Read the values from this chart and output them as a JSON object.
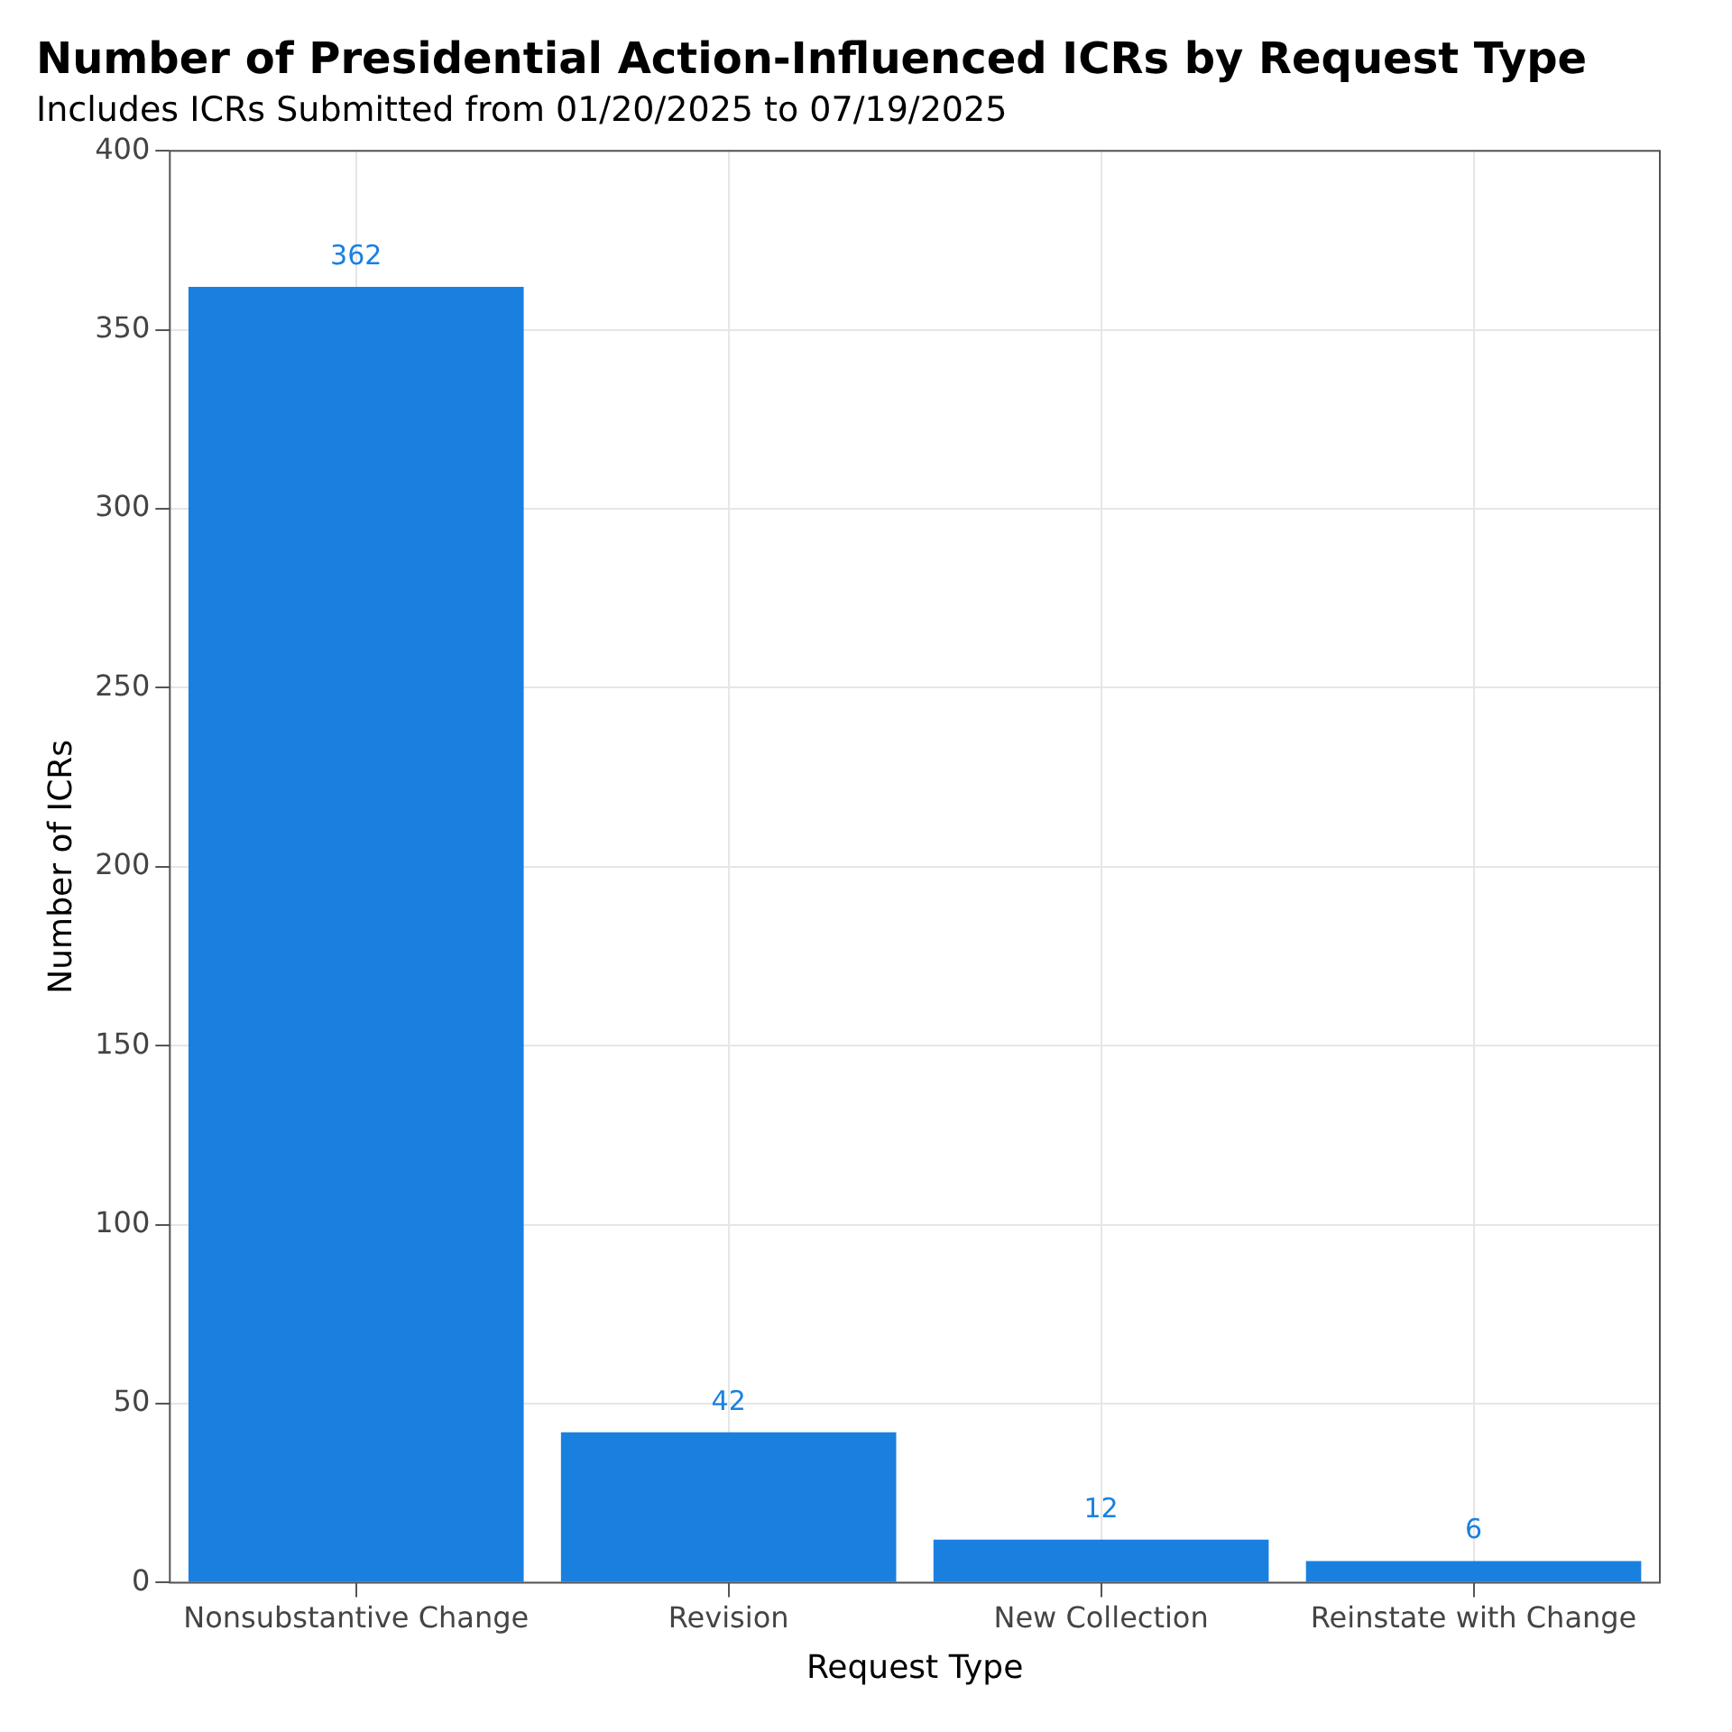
{
  "chart_data": {
    "type": "bar",
    "title": "Number of Presidential Action-Influenced ICRs by Request Type",
    "subtitle": "Includes ICRs Submitted from 01/20/2025 to 07/19/2025",
    "xlabel": "Request Type",
    "ylabel": "Number of ICRs",
    "categories": [
      "Nonsubstantive Change",
      "Revision",
      "New Collection",
      "Reinstate with Change"
    ],
    "values": [
      362,
      42,
      12,
      6
    ],
    "color": "#1a80e0",
    "ylim": [
      0,
      400
    ],
    "yticks": [
      0,
      50,
      100,
      150,
      200,
      250,
      300,
      350,
      400
    ],
    "grid": true,
    "data_labels": true
  }
}
